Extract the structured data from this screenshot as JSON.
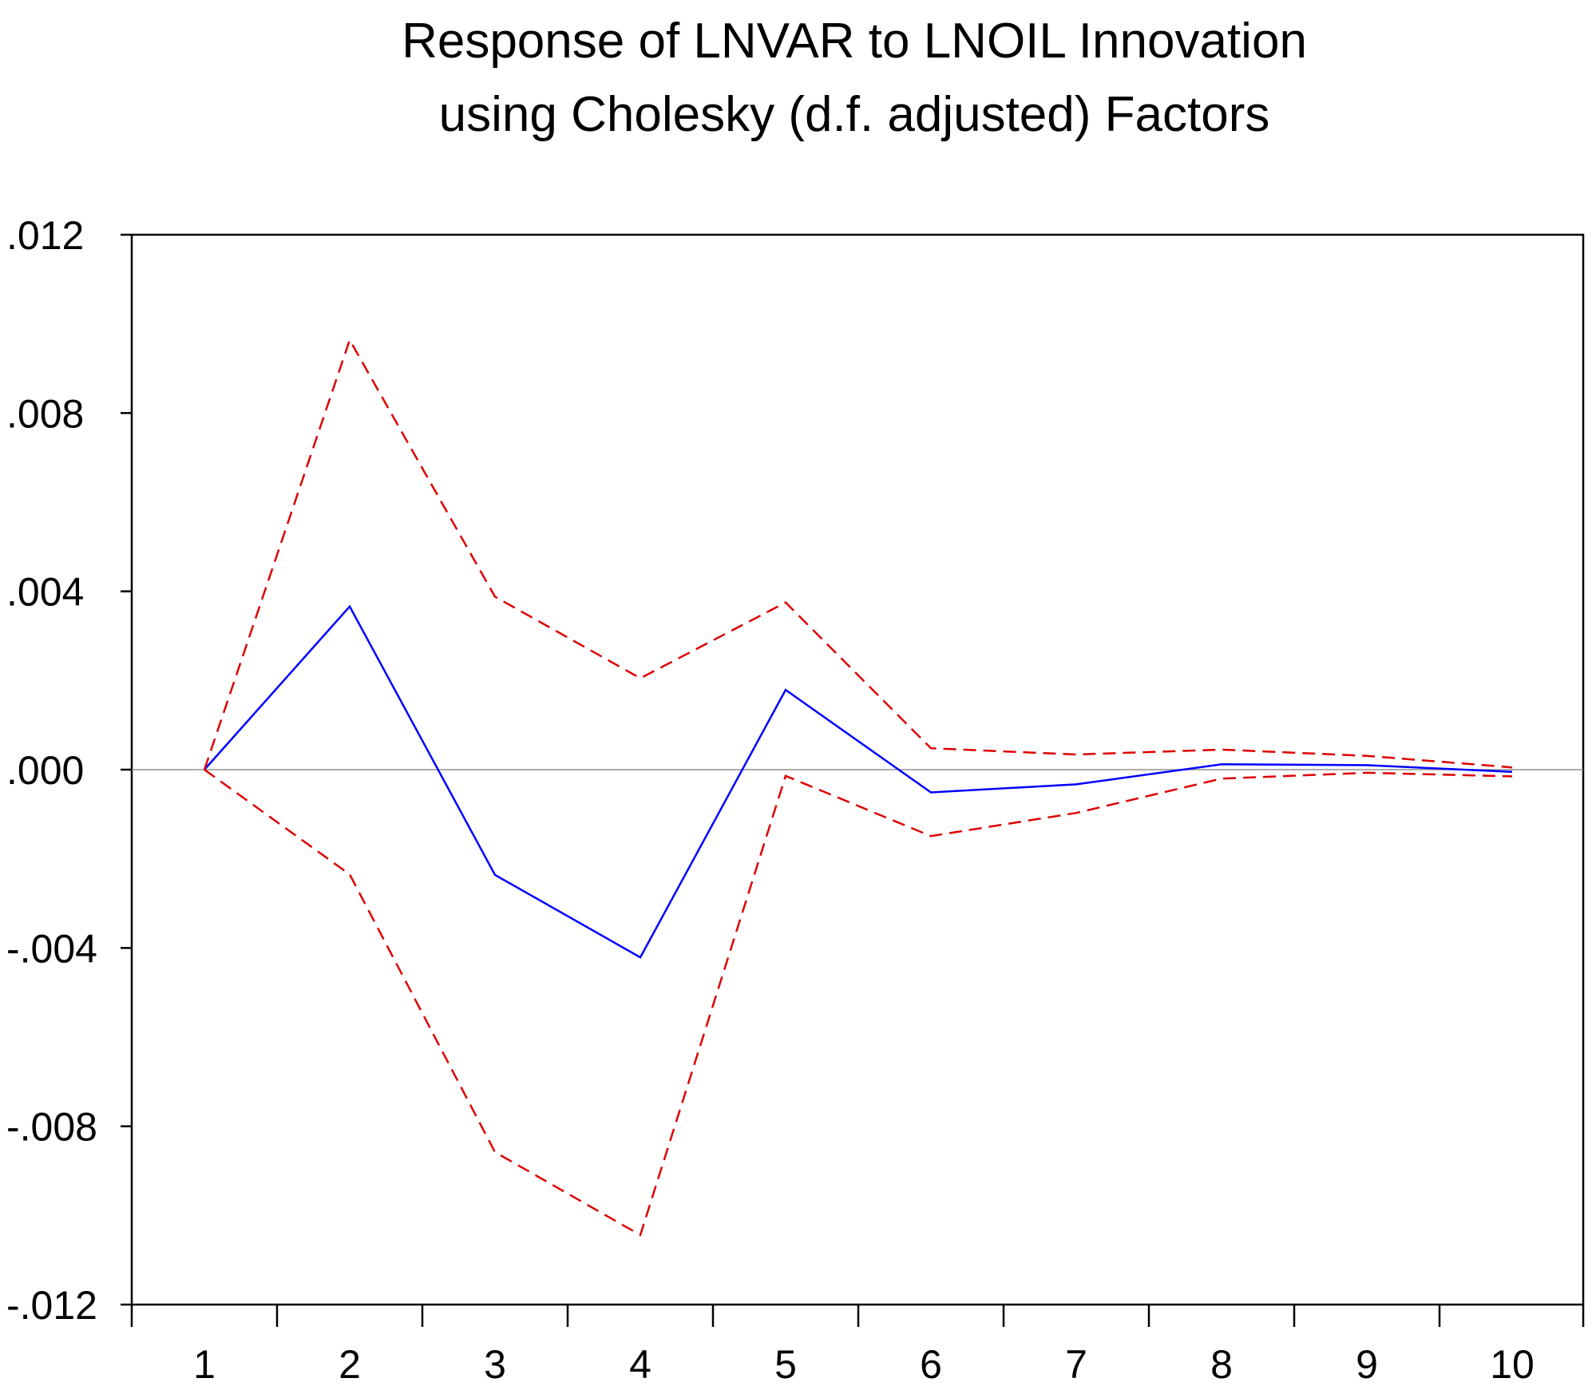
{
  "chart_data": {
    "type": "line",
    "title": [
      "Response of LNVAR to LNOIL Innovation",
      "using Cholesky (d.f. adjusted) Factors"
    ],
    "xlabel": "",
    "ylabel": "",
    "x": [
      1,
      2,
      3,
      4,
      5,
      6,
      7,
      8,
      9,
      10
    ],
    "x_tick_labels": [
      "1",
      "2",
      "3",
      "4",
      "5",
      "6",
      "7",
      "8",
      "9",
      "10"
    ],
    "y_tick_values": [
      0.012,
      0.008,
      0.004,
      0.0,
      -0.004,
      -0.008,
      -0.012
    ],
    "y_tick_labels": [
      ".012",
      ".008",
      ".004",
      ".000",
      "-.004",
      "-.008",
      "-.012"
    ],
    "ylim": [
      -0.012,
      0.012
    ],
    "grid": false,
    "zero_line": true,
    "series": [
      {
        "values": [
          0.0,
          0.00366,
          -0.00236,
          -0.00421,
          0.00179,
          -0.00051,
          -0.00033,
          0.00012,
          0.0001,
          -5e-05
        ],
        "color": "#0000ff",
        "style": "solid"
      },
      {
        "values": [
          0.0,
          0.00964,
          0.00388,
          0.00205,
          0.00375,
          0.00048,
          0.00034,
          0.00045,
          0.00031,
          5e-05
        ],
        "color": "#dd0000",
        "style": "dashed"
      },
      {
        "values": [
          0.0,
          -0.00235,
          -0.00858,
          -0.01044,
          -0.00014,
          -0.00149,
          -0.00097,
          -0.0002,
          -7e-05,
          -0.00015
        ],
        "color": "#dd0000",
        "style": "dashed"
      }
    ]
  }
}
